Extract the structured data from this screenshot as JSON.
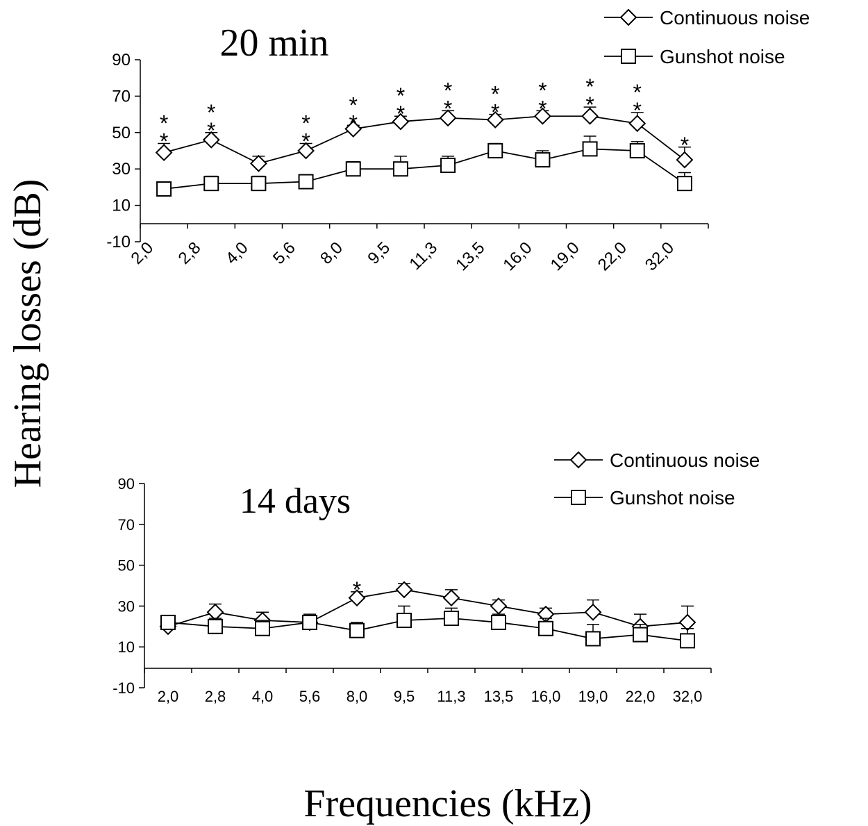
{
  "figure": {
    "ylabel": "Hearing losses (dB)",
    "xlabel": "Frequencies (kHz)"
  },
  "colors": {
    "ink": "#000000",
    "background": "#ffffff"
  },
  "chart_data": [
    {
      "type": "line",
      "title": "20 min",
      "categories": [
        "2,0",
        "2,8",
        "4,0",
        "5,6",
        "8,0",
        "9,5",
        "11,3",
        "13,5",
        "16,0",
        "19,0",
        "22,0",
        "32,0"
      ],
      "ylim": [
        -10,
        90
      ],
      "yticks": [
        "-10",
        "10",
        "30",
        "50",
        "70",
        "90"
      ],
      "tick_label_rotation": "rotated",
      "legend_position": "top-right",
      "series": [
        {
          "name": "Continuous noise",
          "marker": "diamond",
          "values": [
            39,
            46,
            33,
            40,
            52,
            56,
            58,
            57,
            59,
            59,
            55,
            35
          ],
          "error_upper": [
            5,
            4,
            4,
            4,
            2,
            3,
            4,
            3,
            3,
            5,
            6,
            7
          ],
          "significance": [
            "**",
            "**",
            "",
            "**",
            "**",
            "**",
            "**",
            "**",
            "**",
            "**",
            "**",
            "*"
          ]
        },
        {
          "name": "Gunshot noise",
          "marker": "square",
          "values": [
            19,
            22,
            22,
            23,
            30,
            30,
            32,
            40,
            35,
            41,
            40,
            22
          ],
          "error_upper": [
            3,
            4,
            4,
            3,
            4,
            7,
            5,
            4,
            5,
            7,
            5,
            6
          ]
        }
      ]
    },
    {
      "type": "line",
      "title": "14 days",
      "categories": [
        "2,0",
        "2,8",
        "4,0",
        "5,6",
        "8,0",
        "9,5",
        "11,3",
        "13,5",
        "16,0",
        "19,0",
        "22,0",
        "32,0"
      ],
      "ylim": [
        -10,
        90
      ],
      "yticks": [
        "-10",
        "10",
        "30",
        "50",
        "70",
        "90"
      ],
      "tick_label_rotation": "horizontal",
      "legend_position": "top-right",
      "series": [
        {
          "name": "Continuous noise",
          "marker": "diamond",
          "values": [
            20,
            27,
            23,
            22,
            34,
            38,
            34,
            30,
            26,
            27,
            20,
            22
          ],
          "error_upper": [
            5,
            4,
            4,
            4,
            3,
            3,
            4,
            3,
            3,
            6,
            6,
            8
          ],
          "significance": [
            "",
            "",
            "",
            "",
            "*",
            "",
            "",
            "",
            "",
            "",
            "",
            ""
          ]
        },
        {
          "name": "Gunshot noise",
          "marker": "square",
          "values": [
            22,
            20,
            19,
            22,
            18,
            23,
            24,
            22,
            19,
            14,
            16,
            13
          ],
          "error_upper": [
            3,
            4,
            4,
            3,
            4,
            7,
            5,
            4,
            5,
            7,
            5,
            6
          ]
        }
      ]
    }
  ]
}
